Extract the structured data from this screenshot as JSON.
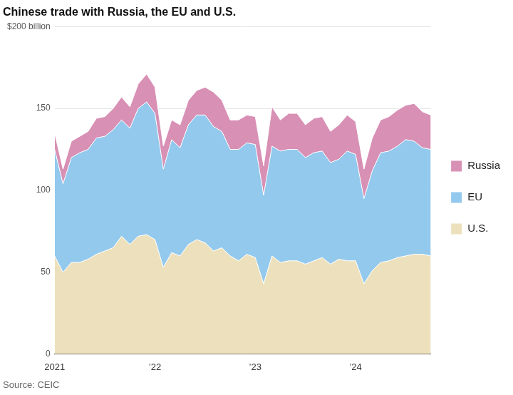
{
  "chart_data": {
    "type": "area",
    "title": "Chinese trade with Russia, the EU and U.S.",
    "source": "Source: CEIC",
    "categories": [
      "2021",
      null,
      null,
      null,
      null,
      null,
      null,
      null,
      null,
      null,
      null,
      null,
      "’22",
      null,
      null,
      null,
      null,
      null,
      null,
      null,
      null,
      null,
      null,
      null,
      "’23",
      null,
      null,
      null,
      null,
      null,
      null,
      null,
      null,
      null,
      null,
      null,
      "’24",
      null,
      null,
      null,
      null,
      null,
      null,
      null,
      null,
      null
    ],
    "series": [
      {
        "name": "U.S.",
        "color": "#ede1bd",
        "values": [
          60,
          50,
          56,
          56,
          58,
          61,
          63,
          65,
          72,
          67,
          72,
          73,
          70,
          53,
          62,
          60,
          67,
          70,
          68,
          63,
          65,
          60,
          57,
          61,
          59,
          43,
          60,
          56,
          57,
          57,
          55,
          57,
          59,
          55,
          58,
          57,
          57,
          43,
          51,
          56,
          57,
          59,
          60,
          61,
          61,
          60
        ]
      },
      {
        "name": "EU",
        "color": "#93c9ed",
        "values": [
          65,
          54,
          64,
          67,
          67,
          71,
          70,
          72,
          71,
          71,
          78,
          81,
          77,
          60,
          69,
          66,
          73,
          76,
          78,
          76,
          71,
          65,
          68,
          68,
          69,
          54,
          67,
          68,
          68,
          68,
          65,
          66,
          65,
          62,
          61,
          67,
          65,
          52,
          61,
          67,
          67,
          68,
          71,
          69,
          65,
          65
        ]
      },
      {
        "name": "Russia",
        "color": "#d890b5",
        "values": [
          10,
          9,
          10,
          10,
          11,
          12,
          12,
          13,
          14,
          13,
          15,
          17,
          16,
          14,
          12,
          14,
          15,
          15,
          17,
          21,
          19,
          18,
          18,
          17,
          17,
          18,
          24,
          19,
          22,
          22,
          20,
          21,
          21,
          19,
          21,
          22,
          20,
          18,
          20,
          20,
          21,
          22,
          21,
          23,
          22,
          21
        ]
      }
    ],
    "ylim": [
      0,
      200
    ],
    "yticks": [
      0,
      50,
      100,
      150,
      {
        "value": 200,
        "label": "$200 billion"
      }
    ],
    "stacked": true,
    "grid": true,
    "legend": "right"
  }
}
